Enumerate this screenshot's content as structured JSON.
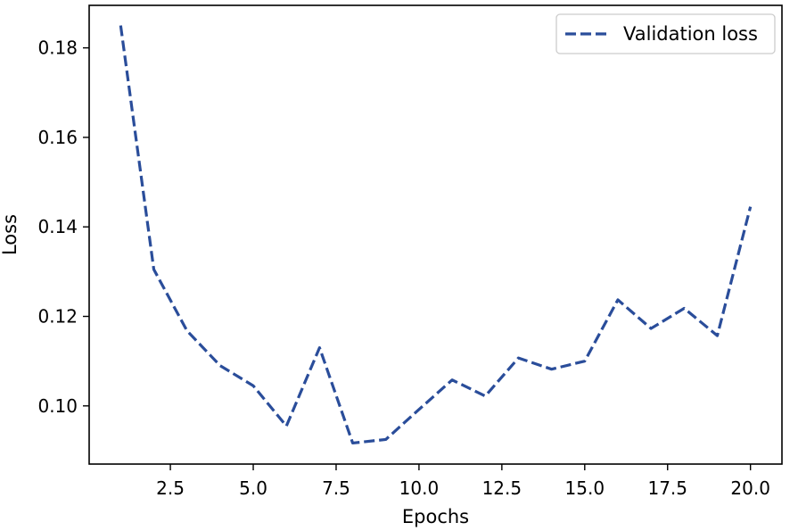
{
  "chart_data": {
    "type": "line",
    "title": "",
    "xlabel": "Epochs",
    "ylabel": "Loss",
    "xlim": [
      0.05,
      20.95
    ],
    "ylim": [
      0.087,
      0.1895
    ],
    "xticks": [
      2.5,
      5.0,
      7.5,
      10.0,
      12.5,
      15.0,
      17.5,
      20.0
    ],
    "xtick_labels": [
      "2.5",
      "5.0",
      "7.5",
      "10.0",
      "12.5",
      "15.0",
      "17.5",
      "20.0"
    ],
    "yticks": [
      0.1,
      0.12,
      0.14,
      0.16,
      0.18
    ],
    "ytick_labels": [
      "0.10",
      "0.12",
      "0.14",
      "0.16",
      "0.18"
    ],
    "grid": false,
    "legend_position": "top-right",
    "series": [
      {
        "name": "Validation loss",
        "color": "#2a4d9a",
        "line_style": "dashed",
        "x": [
          1,
          2,
          3,
          4,
          5,
          6,
          7,
          8,
          9,
          10,
          11,
          12,
          13,
          14,
          15,
          16,
          17,
          18,
          19,
          20
        ],
        "y": [
          0.185,
          0.1305,
          0.1168,
          0.109,
          0.1045,
          0.0955,
          0.113,
          0.0917,
          0.0925,
          0.0992,
          0.1058,
          0.1022,
          0.1107,
          0.1082,
          0.11,
          0.1237,
          0.1173,
          0.1218,
          0.1157,
          0.1445
        ]
      }
    ]
  }
}
